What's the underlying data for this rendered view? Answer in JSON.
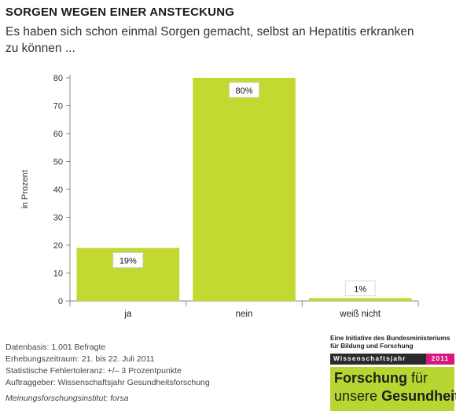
{
  "header": {
    "title": "SORGEN WEGEN EINER ANSTECKUNG",
    "subtitle": "Es haben sich schon einmal Sorgen gemacht, selbst an Hepatitis erkranken zu können ..."
  },
  "chart_data": {
    "type": "bar",
    "categories": [
      "ja",
      "nein",
      "weiß nicht"
    ],
    "values": [
      19,
      80,
      1
    ],
    "data_labels": [
      "19%",
      "80%",
      "1%"
    ],
    "ylabel": "in Prozent",
    "xlabel": "",
    "ylim": [
      0,
      80
    ],
    "yticks": [
      0,
      10,
      20,
      30,
      40,
      50,
      60,
      70,
      80
    ],
    "bar_color": "#c3d932",
    "grid": false
  },
  "footer": {
    "lines": [
      "Datenbasis: 1.001 Befragte",
      "Erhebungszeitraum: 21. bis 22. Juli 2011",
      "Statistische Fehlertoleranz: +/– 3 Prozentpunkte",
      "Auftraggeber: Wissenschaftsjahr Gesundheitsforschung"
    ],
    "institute": "Meinungsforschungsinstitut: forsa"
  },
  "logo": {
    "line1": "Eine Initiative des Bundesministeriums",
    "line2": "für Bildung und Forschung",
    "band": "Wissenschaftsjahr",
    "year": "2011",
    "word1_bold": "Forschung",
    "word1_rest": "für",
    "word2_rest": "unsere",
    "word2_bold": "Gesundheit",
    "accent_color": "#d6197e",
    "green_color": "#b7d631"
  }
}
